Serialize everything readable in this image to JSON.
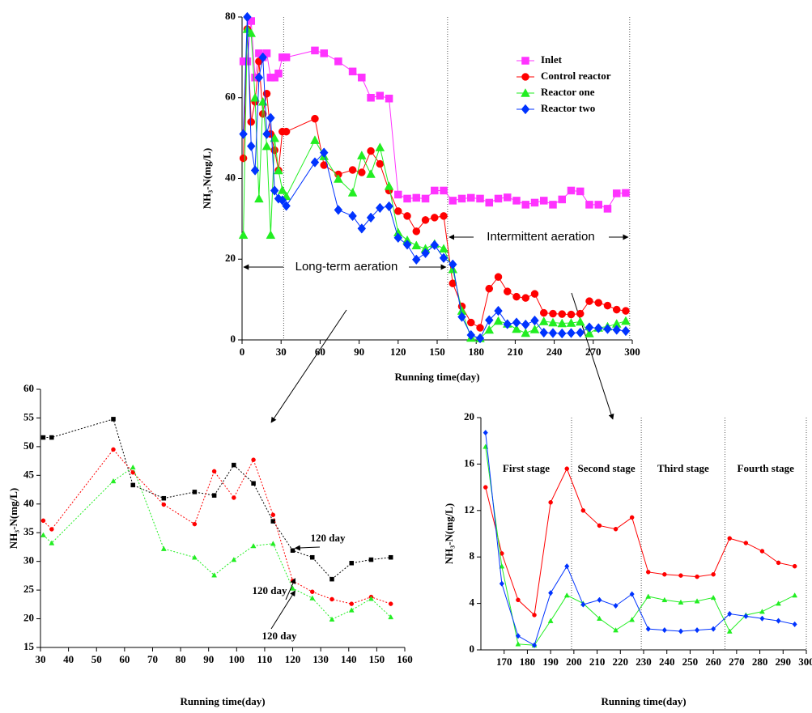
{
  "chart_data": [
    {
      "type": "line",
      "xlabel": "Running time(day)",
      "ylabel": "NH₃-N(mg/L)",
      "xlim": [
        0,
        300
      ],
      "ylim": [
        0,
        80
      ],
      "xticks": [
        0,
        30,
        60,
        90,
        120,
        150,
        180,
        210,
        240,
        270,
        300
      ],
      "yticks": [
        0,
        20,
        40,
        60,
        80
      ],
      "vlines": [
        32,
        158,
        298
      ],
      "legend": "upper right",
      "dash": false,
      "annotations": [
        "Long-term aeration",
        "Intermittent aeration"
      ],
      "x": [
        1,
        4,
        7,
        10,
        13,
        16,
        19,
        22,
        25,
        28,
        31,
        34,
        56,
        63,
        74,
        85,
        92,
        99,
        106,
        113,
        120,
        127,
        134,
        141,
        148,
        155,
        162,
        169,
        176,
        183,
        190,
        197,
        204,
        211,
        218,
        225,
        232,
        239,
        246,
        253,
        260,
        267,
        274,
        281,
        288,
        295
      ],
      "series": [
        {
          "name": "Inlet",
          "color": "#ff33ff",
          "marker": "square",
          "values": [
            69,
            69,
            79,
            65,
            71,
            70,
            71,
            65,
            65,
            66,
            70,
            70,
            71.7,
            71,
            69,
            66.5,
            65,
            60,
            60.5,
            59.8,
            36,
            35,
            35.2,
            35,
            37,
            37,
            34.5,
            35,
            35.2,
            35,
            34,
            35,
            35.3,
            34.5,
            33.5,
            34,
            34.5,
            33.5,
            34.8,
            37,
            36.8,
            33.5,
            33.5,
            32.5,
            36.3,
            36.4
          ]
        },
        {
          "name": "Control reactor",
          "color": "#ff0000",
          "marker": "circle",
          "values": [
            45,
            77,
            54,
            59,
            69,
            56,
            61,
            51,
            47,
            42,
            51.6,
            51.6,
            54.8,
            43.3,
            41.0,
            42.1,
            41.5,
            46.8,
            43.6,
            37.0,
            31.9,
            30.7,
            26.9,
            29.7,
            30.3,
            30.7,
            14.0,
            8.3,
            4.3,
            3.0,
            12.7,
            15.6,
            12.0,
            10.7,
            10.4,
            11.4,
            6.7,
            6.5,
            6.4,
            6.3,
            6.5,
            9.6,
            9.2,
            8.5,
            7.5,
            7.2
          ]
        },
        {
          "name": "Reactor one",
          "color": "#22ee22",
          "marker": "triangle",
          "values": [
            26,
            77,
            76,
            60,
            35,
            59,
            48,
            26,
            50,
            42,
            37.1,
            35.6,
            49.5,
            45.5,
            39.9,
            36.5,
            45.7,
            41.1,
            47.7,
            38.1,
            26.6,
            24.7,
            23.4,
            22.6,
            23.8,
            22.6,
            17.5,
            7.2,
            0.5,
            0.4,
            2.5,
            4.7,
            4.0,
            2.7,
            1.7,
            2.6,
            4.6,
            4.3,
            4.1,
            4.2,
            4.5,
            1.6,
            3.0,
            3.3,
            4.0,
            4.7
          ]
        },
        {
          "name": "Reactor two",
          "color": "#0033ff",
          "marker": "diamond",
          "values": [
            51,
            80,
            48,
            42,
            65,
            70,
            51,
            55,
            37,
            35,
            34.6,
            33.2,
            44.0,
            46.4,
            32.2,
            30.7,
            27.6,
            30.3,
            32.7,
            33.1,
            25.3,
            23.6,
            19.9,
            21.5,
            23.5,
            20.3,
            18.7,
            5.7,
            1.2,
            0.4,
            4.9,
            7.2,
            3.9,
            4.3,
            3.8,
            4.8,
            1.8,
            1.7,
            1.6,
            1.7,
            1.8,
            3.1,
            2.9,
            2.7,
            2.5,
            2.2
          ]
        }
      ]
    },
    {
      "type": "line",
      "xlabel": "Running time(day)",
      "ylabel": "NH₃-N(mg/L)",
      "xlim": [
        30,
        160
      ],
      "ylim": [
        15,
        60
      ],
      "xticks": [
        30,
        40,
        50,
        60,
        70,
        80,
        90,
        100,
        110,
        120,
        130,
        140,
        150,
        160
      ],
      "yticks": [
        15,
        20,
        25,
        30,
        35,
        40,
        45,
        50,
        55,
        60
      ],
      "dash": true,
      "annotations": [
        "120 day",
        "120 day",
        "120 day"
      ],
      "x": [
        31,
        34,
        56,
        63,
        74,
        85,
        92,
        99,
        106,
        113,
        120,
        127,
        134,
        141,
        148,
        155
      ],
      "series": [
        {
          "color": "#000000",
          "marker": "square",
          "values": [
            51.6,
            51.6,
            54.8,
            43.3,
            41.0,
            42.1,
            41.5,
            46.8,
            43.6,
            37.0,
            31.9,
            30.7,
            26.9,
            29.7,
            30.3,
            30.7
          ]
        },
        {
          "color": "#ff0000",
          "marker": "circle",
          "values": [
            37.1,
            35.6,
            49.5,
            45.5,
            39.9,
            36.5,
            45.7,
            41.1,
            47.7,
            38.1,
            26.6,
            24.7,
            23.4,
            22.6,
            23.8,
            22.6
          ]
        },
        {
          "color": "#22ee22",
          "marker": "triangle",
          "values": [
            34.6,
            33.2,
            44.0,
            46.4,
            32.2,
            30.7,
            27.6,
            30.3,
            32.7,
            33.1,
            25.3,
            23.6,
            19.9,
            21.5,
            23.5,
            20.3
          ]
        }
      ]
    },
    {
      "type": "line",
      "xlabel": "Running time(day)",
      "ylabel": "NH₃-N(mg/L)",
      "xlim": [
        160,
        300
      ],
      "ylim": [
        0,
        20
      ],
      "xticks": [
        170,
        180,
        190,
        200,
        210,
        220,
        230,
        240,
        250,
        260,
        270,
        280,
        290,
        300
      ],
      "yticks": [
        0,
        4,
        8,
        12,
        16,
        20
      ],
      "vlines": [
        199,
        229,
        265,
        300
      ],
      "dash": false,
      "annotations": [
        "First stage",
        "Second stage",
        "Third stage",
        "Fourth stage"
      ],
      "x": [
        162,
        169,
        176,
        183,
        190,
        197,
        204,
        211,
        218,
        225,
        232,
        239,
        246,
        253,
        260,
        267,
        274,
        281,
        288,
        295
      ],
      "series": [
        {
          "color": "#ff0000",
          "marker": "circle",
          "values": [
            14.0,
            8.3,
            4.3,
            3.0,
            12.7,
            15.6,
            12.0,
            10.7,
            10.4,
            11.4,
            6.7,
            6.5,
            6.4,
            6.3,
            6.5,
            9.6,
            9.2,
            8.5,
            7.5,
            7.2
          ]
        },
        {
          "color": "#22ee22",
          "marker": "triangle",
          "values": [
            17.5,
            7.2,
            0.5,
            0.4,
            2.5,
            4.7,
            4.0,
            2.7,
            1.7,
            2.6,
            4.6,
            4.3,
            4.1,
            4.2,
            4.5,
            1.6,
            3.0,
            3.3,
            4.0,
            4.7
          ]
        },
        {
          "color": "#0033ff",
          "marker": "diamond",
          "values": [
            18.7,
            5.7,
            1.2,
            0.4,
            4.9,
            7.2,
            3.9,
            4.3,
            3.8,
            4.8,
            1.8,
            1.7,
            1.6,
            1.7,
            1.8,
            3.1,
            2.9,
            2.7,
            2.5,
            2.2
          ]
        }
      ]
    }
  ]
}
